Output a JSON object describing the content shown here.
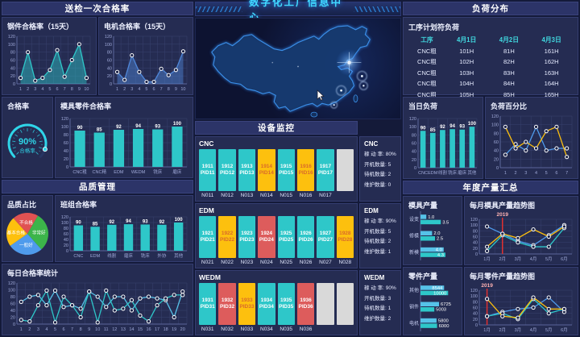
{
  "page": {
    "title": "数字化工厂信息中心"
  },
  "sections": {
    "inspection": {
      "title": "送检一次合格率"
    },
    "quality": {
      "title": "品质管理"
    },
    "monitor": {
      "title": "设备监控"
    },
    "load": {
      "title": "负荷分布"
    },
    "annual": {
      "title": "年度产量汇总"
    }
  },
  "colors": {
    "teal": "#2ec7c9",
    "blue": "#4f9bec",
    "light_blue": "#56c2e8",
    "yellow": "#fdc00e",
    "red": "#dd5c5c",
    "gray": "#d9d9d9",
    "accent": "#41d9e0",
    "grid": "#39426f"
  },
  "chart_data": [
    {
      "id": "steel-pass",
      "type": "line",
      "title": "钢件合格率（15天）",
      "categories": [
        "1",
        "2",
        "3",
        "4",
        "5",
        "6",
        "7",
        "8",
        "9",
        "10"
      ],
      "ylim": [
        0,
        120
      ],
      "yticks": [
        0,
        20,
        40,
        60,
        80,
        100,
        120
      ],
      "grid": true,
      "series": [
        {
          "name": "钢件合格率",
          "color": "#2ec7c9",
          "area": true,
          "values": [
            15,
            80,
            8,
            15,
            35,
            85,
            18,
            60,
            100,
            15
          ]
        }
      ]
    },
    {
      "id": "motor-pass",
      "type": "line",
      "title": "电机合格率（15天）",
      "categories": [
        "1",
        "2",
        "3",
        "4",
        "5",
        "6",
        "7",
        "8",
        "9",
        "10"
      ],
      "ylim": [
        0,
        120
      ],
      "yticks": [
        0,
        20,
        40,
        60,
        80,
        100,
        120
      ],
      "grid": true,
      "series": [
        {
          "name": "电机合格率",
          "color": "#4f87d9",
          "area": true,
          "values": [
            30,
            10,
            72,
            30,
            5,
            5,
            38,
            22,
            35,
            82
          ]
        }
      ]
    },
    {
      "id": "pass-gauge",
      "type": "gauge",
      "panel_title": "合格率",
      "value": "90%",
      "label": "合格率",
      "percent": 90,
      "color": "#2fd5e8"
    },
    {
      "id": "mold-part-pass",
      "type": "bar",
      "title": "模具零件合格率",
      "categories": [
        "CNC粗",
        "CNC精",
        "EDM",
        "WEDM",
        "铣床",
        "磨床"
      ],
      "ylim": [
        0,
        120
      ],
      "yticks": [
        0,
        20,
        40,
        60,
        80,
        100,
        120
      ],
      "color": "#2ec7c9",
      "show_values": true,
      "values": [
        90,
        85,
        92,
        94,
        93,
        100
      ]
    },
    {
      "id": "quality-pie",
      "type": "pie",
      "title": "品质占比",
      "start_deg": -60,
      "slices": [
        {
          "label": "非常好",
          "value": 30,
          "color": "#3cb54a"
        },
        {
          "label": "一般好",
          "value": 27,
          "color": "#4f9bec"
        },
        {
          "label": "基本合格",
          "value": 23,
          "color": "#fdc00e"
        },
        {
          "label": "不合格",
          "value": 20,
          "color": "#e05252"
        }
      ]
    },
    {
      "id": "team-pass",
      "type": "bar",
      "title": "班组合格率",
      "categories": [
        "CNC",
        "EDM",
        "线割",
        "磨床",
        "铣床",
        "外协",
        "其他"
      ],
      "ylim": [
        0,
        120
      ],
      "yticks": [
        0,
        20,
        40,
        60,
        80,
        100,
        120
      ],
      "color": "#2ec7c9",
      "show_values": true,
      "values": [
        90,
        85,
        92,
        94,
        93,
        92,
        100
      ]
    },
    {
      "id": "daily-pass",
      "type": "line",
      "title": "每日合格率统计",
      "categories": [
        "1",
        "2",
        "3",
        "4",
        "5",
        "6",
        "7",
        "8",
        "9",
        "10",
        "11",
        "12",
        "13",
        "14",
        "15",
        "16",
        "17",
        "18",
        "19",
        "20"
      ],
      "ylim": [
        0,
        120
      ],
      "yticks": [
        0,
        20,
        40,
        60,
        80,
        100,
        120
      ],
      "grid": true,
      "series": [
        {
          "name": "系列1",
          "color": "#56c2e8",
          "values": [
            65,
            80,
            85,
            55,
            98,
            50,
            55,
            45,
            95,
            80,
            50,
            80,
            80,
            40,
            75,
            80,
            75,
            70,
            20,
            95
          ]
        },
        {
          "name": "系列2",
          "color": "#2ec7c9",
          "values": [
            12,
            8,
            55,
            98,
            5,
            80,
            55,
            20,
            95,
            5,
            98,
            40,
            45,
            70,
            25,
            8,
            55,
            75,
            85,
            85
          ]
        }
      ]
    },
    {
      "id": "daily-load",
      "type": "bar",
      "title": "当日负荷",
      "categories": [
        "CNC",
        "EDM",
        "线割",
        "铣床",
        "磨床",
        "其他"
      ],
      "ylim": [
        0,
        120
      ],
      "yticks": [
        0,
        20,
        40,
        60,
        80,
        100,
        120
      ],
      "color": "#2ec7c9",
      "show_values": true,
      "values": [
        90,
        85,
        92,
        94,
        93,
        100
      ]
    },
    {
      "id": "load-percent",
      "type": "line",
      "title": "负荷百分比",
      "categories": [
        "1",
        "2",
        "3",
        "4",
        "5",
        "6",
        "7"
      ],
      "ylim": [
        0,
        120
      ],
      "yticks": [
        0,
        20,
        40,
        60,
        80,
        100,
        120
      ],
      "grid": true,
      "series": [
        {
          "name": "系列1",
          "color": "#4f9bec",
          "values": [
            30,
            55,
            40,
            95,
            40,
            45,
            45
          ]
        },
        {
          "name": "系列2",
          "color": "#fdc00e",
          "values": [
            95,
            45,
            60,
            45,
            85,
            95,
            25
          ]
        }
      ]
    },
    {
      "id": "mold-output",
      "type": "hbar",
      "title": "模具产量",
      "categories": [
        "设变",
        "修模",
        "新模"
      ],
      "max": 5,
      "series": [
        {
          "color": "#56c2e8",
          "values": [
            1.0,
            2.0,
            4.0
          ],
          "labels": [
            "1.0",
            "2.0",
            "4.0"
          ]
        },
        {
          "color": "#2ec7c9",
          "values": [
            3.5,
            2.5,
            4.3
          ],
          "labels": [
            "3.5",
            "2.5",
            "4.3"
          ]
        }
      ]
    },
    {
      "id": "mold-trend",
      "type": "line",
      "title": "每月模具产量趋势图",
      "categories": [
        "1月",
        "2月",
        "3月",
        "4月",
        "5月",
        "6月"
      ],
      "ylim": [
        0,
        120
      ],
      "yticks": [
        0,
        20,
        40,
        60,
        80,
        100,
        120
      ],
      "grid": true,
      "vline": {
        "index": 1,
        "label": "2019",
        "color": "#e03030"
      },
      "series": [
        {
          "color": "#4f9bec",
          "values": [
            95,
            70,
            45,
            30,
            65,
            100
          ]
        },
        {
          "color": "#2ec7c9",
          "values": [
            10,
            65,
            40,
            25,
            25,
            90
          ]
        },
        {
          "color": "#fdc00e",
          "values": [
            25,
            70,
            55,
            85,
            60,
            95
          ]
        }
      ]
    },
    {
      "id": "part-output",
      "type": "hbar",
      "title": "零件产量",
      "categories": [
        "其他",
        "钢件",
        "电机"
      ],
      "max": 10500,
      "series": [
        {
          "color": "#56c2e8",
          "values": [
            8544,
            6725,
            5800
          ],
          "labels": [
            "8544",
            "6725",
            "5800"
          ]
        },
        {
          "color": "#2ec7c9",
          "values": [
            10000,
            5003,
            6000
          ],
          "labels": [
            "10000",
            "5003",
            "6000"
          ]
        }
      ]
    },
    {
      "id": "part-trend",
      "type": "line",
      "title": "每月零件产量趋势图",
      "categories": [
        "1月",
        "2月",
        "3月",
        "4月",
        "5月",
        "6月"
      ],
      "ylim": [
        0,
        120
      ],
      "yticks": [
        0,
        20,
        40,
        60,
        80,
        100,
        120
      ],
      "grid": true,
      "vline": {
        "index": 0,
        "label": "2019",
        "color": "#e03030"
      },
      "series": [
        {
          "color": "#4f9bec",
          "values": [
            30,
            45,
            55,
            60,
            95,
            45
          ]
        },
        {
          "color": "#2ec7c9",
          "values": [
            30,
            40,
            20,
            90,
            40,
            55
          ]
        },
        {
          "color": "#fdc00e",
          "values": [
            90,
            30,
            25,
            95,
            55,
            55
          ]
        }
      ]
    }
  ],
  "right": {
    "load_table": {
      "title": "工序计划符负荷",
      "headers": [
        "工序",
        "4月1日",
        "4月2日",
        "4月3日"
      ],
      "rows": [
        [
          "CNC粗",
          "101H",
          "81H",
          "161H"
        ],
        [
          "CNC粗",
          "102H",
          "82H",
          "162H"
        ],
        [
          "CNC粗",
          "103H",
          "83H",
          "163H"
        ],
        [
          "CNC粗",
          "104H",
          "84H",
          "164H"
        ],
        [
          "CNC粗",
          "105H",
          "85H",
          "165H"
        ]
      ]
    }
  },
  "center": {
    "stats_labels": {
      "rate": "稼 动 率",
      "on": "开机数量",
      "standby": "待机数量",
      "maintain": "维护数量"
    },
    "groups": [
      {
        "name": "CNC",
        "stats": {
          "rate": "80%",
          "on": "5",
          "standby": "2",
          "maintain": "0"
        },
        "machines": [
          {
            "id": "1911",
            "pid": "PID11",
            "no": "N011",
            "status": "run"
          },
          {
            "id": "1912",
            "pid": "PID12",
            "no": "N012",
            "status": "run"
          },
          {
            "id": "1913",
            "pid": "PID13",
            "no": "N013",
            "status": "run"
          },
          {
            "id": "1914",
            "pid": "PID14",
            "no": "N014",
            "status": "idle"
          },
          {
            "id": "1915",
            "pid": "PID15",
            "no": "N015",
            "status": "run"
          },
          {
            "id": "1916",
            "pid": "PID16",
            "no": "N016",
            "status": "idle"
          },
          {
            "id": "1917",
            "pid": "PID17",
            "no": "N017",
            "status": "run"
          },
          {
            "id": "",
            "pid": "",
            "no": "",
            "status": "empty"
          }
        ]
      },
      {
        "name": "EDM",
        "stats": {
          "rate": "90%",
          "on": "5",
          "standby": "2",
          "maintain": "1"
        },
        "machines": [
          {
            "id": "1921",
            "pid": "PID21",
            "no": "N021",
            "status": "run"
          },
          {
            "id": "1922",
            "pid": "PID22",
            "no": "N022",
            "status": "idle"
          },
          {
            "id": "1923",
            "pid": "PID23",
            "no": "N023",
            "status": "run"
          },
          {
            "id": "1924",
            "pid": "PID24",
            "no": "N024",
            "status": "fault"
          },
          {
            "id": "1925",
            "pid": "PID25",
            "no": "N025",
            "status": "run"
          },
          {
            "id": "1926",
            "pid": "PID26",
            "no": "N026",
            "status": "run"
          },
          {
            "id": "1927",
            "pid": "PID27",
            "no": "N027",
            "status": "run"
          },
          {
            "id": "1928",
            "pid": "PID28",
            "no": "N028",
            "status": "idle"
          }
        ]
      },
      {
        "name": "WEDM",
        "stats": {
          "rate": "90%",
          "on": "3",
          "standby": "1",
          "maintain": "2"
        },
        "machines": [
          {
            "id": "1931",
            "pid": "PID31",
            "no": "N031",
            "status": "run"
          },
          {
            "id": "1932",
            "pid": "PID32",
            "no": "N032",
            "status": "fault"
          },
          {
            "id": "1933",
            "pid": "PID33",
            "no": "N033",
            "status": "idle"
          },
          {
            "id": "1934",
            "pid": "PID34",
            "no": "N034",
            "status": "run"
          },
          {
            "id": "1935",
            "pid": "PID35",
            "no": "N035",
            "status": "run"
          },
          {
            "id": "1936",
            "pid": "PID36",
            "no": "N036",
            "status": "fault"
          },
          {
            "id": "",
            "pid": "",
            "no": "",
            "status": "empty"
          },
          {
            "id": "",
            "pid": "",
            "no": "",
            "status": "empty"
          }
        ]
      }
    ]
  }
}
